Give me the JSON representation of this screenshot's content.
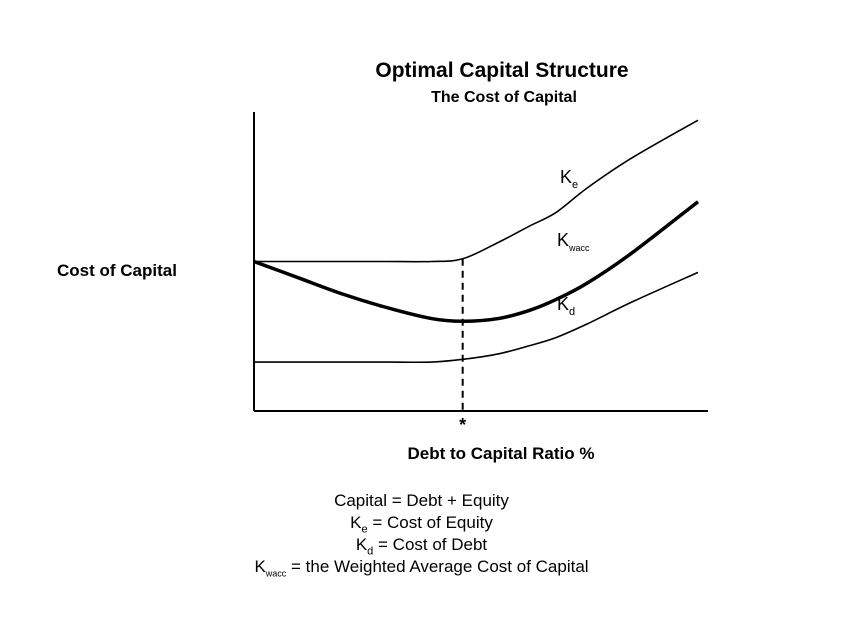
{
  "chart_data": {
    "type": "line",
    "title": "Optimal Capital Structure",
    "subtitle": "The Cost of Capital",
    "xlabel": "Debt to Capital Ratio %",
    "ylabel": "Cost of Capital",
    "optimum_marker": "*",
    "x_ticks": [],
    "y_ticks": [],
    "grid": false,
    "series": [
      {
        "name": "Ke",
        "label_main": "K",
        "label_sub": "e",
        "line_weight": "thin",
        "x": [
          0,
          10,
          20,
          30,
          40,
          47,
          55,
          62,
          68,
          75,
          85,
          100
        ],
        "y": [
          0.55,
          0.55,
          0.55,
          0.55,
          0.55,
          0.56,
          0.62,
          0.68,
          0.73,
          0.82,
          0.93,
          1.07
        ]
      },
      {
        "name": "Kwacc",
        "label_main": "K",
        "label_sub": "wacc",
        "line_weight": "thick",
        "x": [
          0,
          10,
          20,
          30,
          40,
          47,
          55,
          62,
          68,
          75,
          85,
          100
        ],
        "y": [
          0.55,
          0.49,
          0.43,
          0.38,
          0.34,
          0.33,
          0.34,
          0.37,
          0.41,
          0.47,
          0.58,
          0.77
        ]
      },
      {
        "name": "Kd",
        "label_main": "K",
        "label_sub": "d",
        "line_weight": "thin",
        "x": [
          0,
          10,
          20,
          30,
          40,
          47,
          55,
          62,
          68,
          75,
          85,
          100
        ],
        "y": [
          0.18,
          0.18,
          0.18,
          0.18,
          0.18,
          0.19,
          0.21,
          0.24,
          0.27,
          0.32,
          0.4,
          0.51
        ]
      }
    ],
    "optimal_x": 47,
    "xlim": [
      0,
      100
    ],
    "ylim": [
      0,
      1.1
    ]
  },
  "legend": [
    {
      "lines": [
        {
          "text": "Capital = Debt + Equity"
        }
      ]
    },
    {
      "main": "K",
      "sub": "e",
      "rest": " = Cost of Equity"
    },
    {
      "main": "K",
      "sub": "d",
      "rest": " = Cost of Debt"
    },
    {
      "main": "K",
      "sub": "wacc",
      "rest": " = the Weighted Average Cost of Capital"
    }
  ],
  "colors": {
    "line": "#000000",
    "background": "#ffffff"
  }
}
